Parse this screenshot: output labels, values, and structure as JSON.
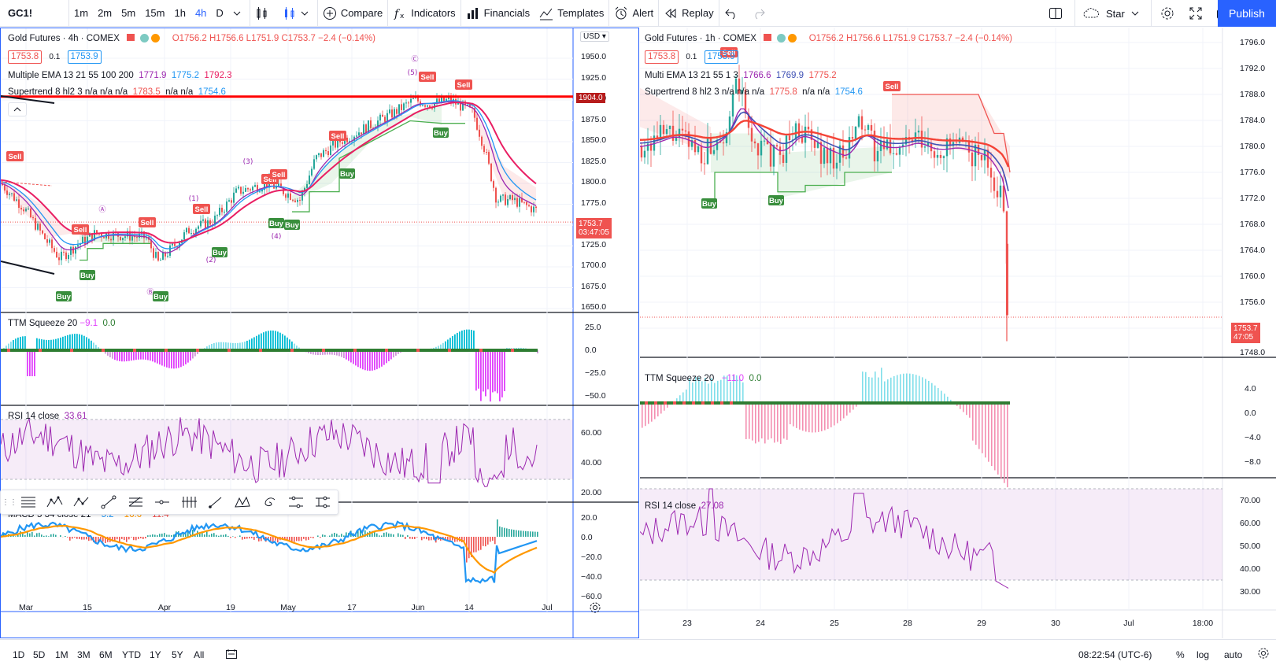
{
  "toolbar": {
    "symbol": "GC1!",
    "intervals": [
      "1m",
      "2m",
      "5m",
      "15m",
      "1h",
      "4h",
      "D"
    ],
    "active_interval": "4h",
    "compare": "Compare",
    "indicators": "Indicators",
    "financials": "Financials",
    "templates": "Templates",
    "alert": "Alert",
    "replay": "Replay",
    "star": "Star",
    "publish": "Publish"
  },
  "left_chart": {
    "title": "Gold Futures · 4h · COMEX",
    "ohlc": "O1756.2 H1756.6 L1751.9 C1753.7 −2.4 (−0.14%)",
    "bid": "1753.8",
    "spread": "0.1",
    "ask": "1753.9",
    "currency": "USD",
    "ema_label": "Multiple EMA 13 21 55 100 200",
    "ema_v1": "1771.9",
    "ema_v2": "1775.2",
    "ema_v3": "1792.3",
    "st_label": "Supertrend 8 hl2 3  n/a n/a n/a",
    "st_v1": "1783.5",
    "st_v2": "n/a n/a",
    "st_v3": "1754.6",
    "price_ticks": [
      "1950.0",
      "1925.0",
      "1900.0",
      "1875.0",
      "1850.0",
      "1825.0",
      "1800.0",
      "1775.0",
      "1750.0",
      "1725.0",
      "1700.0",
      "1675.0",
      "1650.0"
    ],
    "line_tag": "1904.0",
    "last_price": "1753.7",
    "countdown": "03:47:05",
    "ttm_label": "TTM Squeeze 20",
    "ttm_v1": "−9.1",
    "ttm_v2": "0.0",
    "ttm_ticks": [
      "25.0",
      "0.0",
      "−25.0",
      "−50.0"
    ],
    "rsi_label": "RSI 14 close",
    "rsi_v": "33.61",
    "rsi_ticks": [
      "60.00",
      "40.00",
      "20.00"
    ],
    "macd_label": "MACD 5 34 close 21",
    "macd_v1": "−5.2",
    "macd_v2": "−16.6",
    "macd_v3": "−11.4",
    "macd_ticks": [
      "20.0",
      "0.0",
      "−20.0",
      "−40.0",
      "−60.0"
    ],
    "x_ticks": [
      "Mar",
      "15",
      "Apr",
      "19",
      "May",
      "17",
      "Jun",
      "14",
      "Jul"
    ],
    "wave_labels": [
      "Ⓐ",
      "(1)",
      "(2)",
      "(3)",
      "(4)",
      "(5)",
      "Ⓒ",
      "Ⓑ"
    ],
    "sell": "Sell",
    "buy": "Buy"
  },
  "right_chart": {
    "title": "Gold Futures · 1h · COMEX",
    "ohlc": "O1756.2 H1756.6 L1751.9 C1753.7 −2.4 (−0.14%)",
    "bid": "1753.8",
    "spread": "0.1",
    "ask": "1753.9",
    "ema_label": "Multi EMA 13 21 55 1 3",
    "ema_v1": "1766.6",
    "ema_v2": "1769.9",
    "ema_v3": "1775.2",
    "st_label": "Supertrend 8 hl2 3  n/a n/a n/a",
    "st_v1": "1775.8",
    "st_v2": "n/a n/a",
    "st_v3": "1754.6",
    "price_ticks": [
      "1796.0",
      "1792.0",
      "1788.0",
      "1784.0",
      "1780.0",
      "1776.0",
      "1772.0",
      "1768.0",
      "1764.0",
      "1760.0",
      "1756.0",
      "1748.0"
    ],
    "last_price": "1753.7",
    "countdown": "47:05",
    "ttm_label": "TTM Squeeze 20",
    "ttm_v1": "−11.0",
    "ttm_v2": "0.0",
    "ttm_ticks": [
      "4.0",
      "0.0",
      "−4.0",
      "−8.0"
    ],
    "rsi_label": "RSI 14 close",
    "rsi_v": "27.08",
    "rsi_ticks": [
      "70.00",
      "60.00",
      "50.00",
      "40.00",
      "30.00"
    ],
    "x_ticks": [
      "23",
      "24",
      "25",
      "28",
      "29",
      "30",
      "Jul",
      "18:00"
    ],
    "sell": "Sell",
    "buy": "Buy"
  },
  "bottom": {
    "ranges": [
      "1D",
      "5D",
      "1M",
      "3M",
      "6M",
      "YTD",
      "1Y",
      "5Y",
      "All"
    ],
    "clock": "08:22:54 (UTC-6)",
    "percent": "%",
    "log": "log",
    "auto": "auto"
  },
  "colors": {
    "accent": "#2962ff",
    "up": "#26a69a",
    "down": "#ef5350",
    "rsi": "#9c27b0",
    "macd": "#2196f3",
    "signal": "#ff9800"
  }
}
